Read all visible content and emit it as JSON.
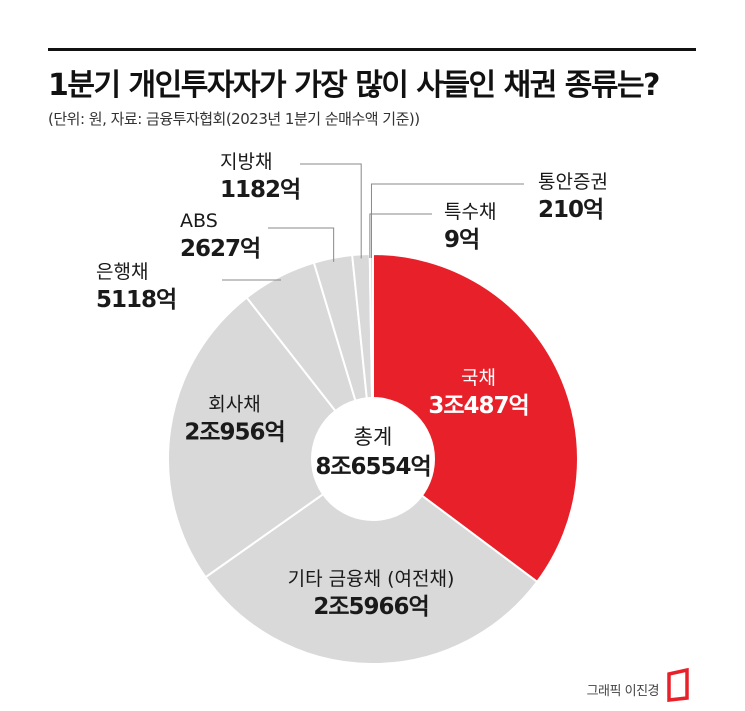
{
  "title": "1분기 개인투자자가 가장 많이 사들인 채권 종류는?",
  "subtitle": "(단위: 원, 자료: 금융투자협회(2023년 1분기 순매수액 기준))",
  "credit": "그래픽 이진경",
  "colors": {
    "highlight": "#e8202a",
    "slice": "#d9d9d9",
    "divider": "#ffffff",
    "leader": "#888888",
    "text": "#1a1a1a"
  },
  "chart_data": {
    "type": "pie",
    "style": "donut",
    "unit": "억원",
    "center_label": "총계",
    "center_value": "8조6554억",
    "total": 86554,
    "slices": [
      {
        "name": "국채",
        "value": 30487,
        "label": "3조487억",
        "highlight": true
      },
      {
        "name": "기타 금융채 (여전채)",
        "value": 25966,
        "label": "2조5966억"
      },
      {
        "name": "회사채",
        "value": 20956,
        "label": "2조956억"
      },
      {
        "name": "은행채",
        "value": 5118,
        "label": "5118억"
      },
      {
        "name": "ABS",
        "value": 2627,
        "label": "2627억"
      },
      {
        "name": "지방채",
        "value": 1182,
        "label": "1182억"
      },
      {
        "name": "특수채",
        "value": 9,
        "label": "9억"
      },
      {
        "name": "통안증권",
        "value": 210,
        "label": "210억"
      }
    ]
  }
}
